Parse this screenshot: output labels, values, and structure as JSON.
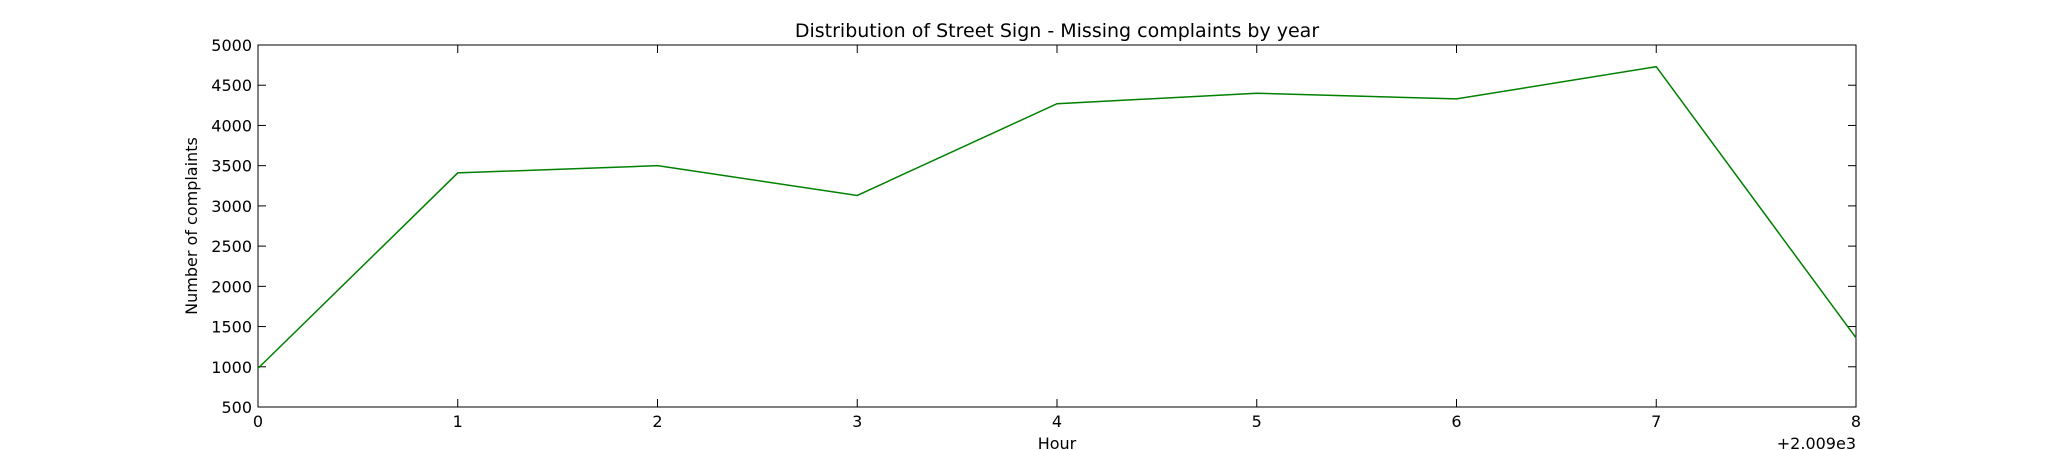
{
  "chart_data": {
    "type": "line",
    "title": "Distribution of  Street Sign - Missing complaints by year",
    "xlabel": "Hour",
    "ylabel": "Number of complaints",
    "x_offset_label": "+2.009e3",
    "xlim": [
      0,
      8
    ],
    "ylim": [
      500,
      5000
    ],
    "x_ticks": [
      0,
      1,
      2,
      3,
      4,
      5,
      6,
      7,
      8
    ],
    "x_tick_labels": [
      "0",
      "1",
      "2",
      "3",
      "4",
      "5",
      "6",
      "7",
      "8"
    ],
    "y_ticks": [
      500,
      1000,
      1500,
      2000,
      2500,
      3000,
      3500,
      4000,
      4500,
      5000
    ],
    "y_tick_labels": [
      "500",
      "1000",
      "1500",
      "2000",
      "2500",
      "3000",
      "3500",
      "4000",
      "4500",
      "5000"
    ],
    "grid": false,
    "series": [
      {
        "color": "#008000",
        "x": [
          0,
          1,
          2,
          3,
          4,
          5,
          6,
          7,
          8
        ],
        "values": [
          980,
          3410,
          3500,
          3130,
          4270,
          4400,
          4330,
          4730,
          1360
        ]
      }
    ]
  }
}
